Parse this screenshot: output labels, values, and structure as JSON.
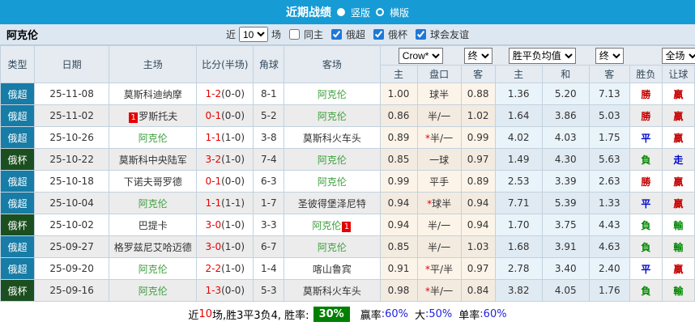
{
  "topbar": {
    "title": "近期战绩",
    "orientation_options": [
      {
        "label": "竖版",
        "selected": true
      },
      {
        "label": "横版",
        "selected": false
      }
    ]
  },
  "filterbar": {
    "team": "阿克伦",
    "near_label": "近",
    "match_count": "10",
    "games_label": "场",
    "filters": [
      {
        "label": "同主",
        "checked": false
      },
      {
        "label": "俄超",
        "checked": true
      },
      {
        "label": "俄杯",
        "checked": true
      },
      {
        "label": "球会友谊",
        "checked": true
      }
    ]
  },
  "table": {
    "dropdowns": {
      "bookmaker": "Crow*",
      "bookmaker_stage": "终",
      "average": "胜平负均值",
      "average_stage": "终",
      "scope": "全场"
    },
    "headers": {
      "type": "类型",
      "date": "日期",
      "home": "主场",
      "score": "比分(半场)",
      "corner": "角球",
      "away": "客场",
      "odds_home": "主",
      "odds_line": "盘口",
      "odds_away": "客",
      "avg_home": "主",
      "avg_draw": "和",
      "avg_away": "客",
      "result": "胜负",
      "handicap_result": "让球"
    },
    "rows": [
      {
        "league": "俄超",
        "league_type": "premier",
        "date": "25-11-08",
        "home": {
          "name": "莫斯科迪纳摩",
          "is_team": false
        },
        "score": "1-2",
        "half": "(0-0)",
        "corner": "8-1",
        "away": {
          "name": "阿克伦",
          "is_team": true
        },
        "odds": {
          "home": "1.00",
          "line": "球半",
          "line_star": false,
          "away": "0.88"
        },
        "avg": {
          "home": "1.36",
          "draw": "5.20",
          "away": "7.13"
        },
        "result": {
          "text": "勝",
          "color": "red"
        },
        "handicap": {
          "text": "贏",
          "color": "red"
        }
      },
      {
        "league": "俄超",
        "league_type": "premier",
        "date": "25-11-02",
        "home": {
          "name": "罗斯托夫",
          "is_team": false,
          "card_before": "1"
        },
        "score": "0-1",
        "half": "(0-0)",
        "corner": "5-2",
        "away": {
          "name": "阿克伦",
          "is_team": true
        },
        "odds": {
          "home": "0.86",
          "line": "半/一",
          "line_star": false,
          "away": "1.02"
        },
        "avg": {
          "home": "1.64",
          "draw": "3.86",
          "away": "5.03"
        },
        "result": {
          "text": "勝",
          "color": "red"
        },
        "handicap": {
          "text": "贏",
          "color": "red"
        }
      },
      {
        "league": "俄超",
        "league_type": "premier",
        "date": "25-10-26",
        "home": {
          "name": "阿克伦",
          "is_team": true
        },
        "score": "1-1",
        "half": "(1-0)",
        "corner": "3-8",
        "away": {
          "name": "莫斯科火车头",
          "is_team": false
        },
        "odds": {
          "home": "0.89",
          "line": "半/一",
          "line_star": true,
          "away": "0.99"
        },
        "avg": {
          "home": "4.02",
          "draw": "4.03",
          "away": "1.75"
        },
        "result": {
          "text": "平",
          "color": "blue"
        },
        "handicap": {
          "text": "贏",
          "color": "red"
        }
      },
      {
        "league": "俄杯",
        "league_type": "cup",
        "date": "25-10-22",
        "home": {
          "name": "莫斯科中央陆军",
          "is_team": false
        },
        "score": "3-2",
        "half": "(1-0)",
        "corner": "7-4",
        "away": {
          "name": "阿克伦",
          "is_team": true
        },
        "odds": {
          "home": "0.85",
          "line": "一球",
          "line_star": false,
          "away": "0.97"
        },
        "avg": {
          "home": "1.49",
          "draw": "4.30",
          "away": "5.63"
        },
        "result": {
          "text": "負",
          "color": "green"
        },
        "handicap": {
          "text": "走",
          "color": "blue"
        }
      },
      {
        "league": "俄超",
        "league_type": "premier",
        "date": "25-10-18",
        "home": {
          "name": "下诺夫哥罗德",
          "is_team": false
        },
        "score": "0-1",
        "half": "(0-0)",
        "corner": "6-3",
        "away": {
          "name": "阿克伦",
          "is_team": true
        },
        "odds": {
          "home": "0.99",
          "line": "平手",
          "line_star": false,
          "away": "0.89"
        },
        "avg": {
          "home": "2.53",
          "draw": "3.39",
          "away": "2.63"
        },
        "result": {
          "text": "勝",
          "color": "red"
        },
        "handicap": {
          "text": "贏",
          "color": "red"
        }
      },
      {
        "league": "俄超",
        "league_type": "premier",
        "date": "25-10-04",
        "home": {
          "name": "阿克伦",
          "is_team": true
        },
        "score": "1-1",
        "half": "(1-1)",
        "corner": "1-7",
        "away": {
          "name": "圣彼得堡泽尼特",
          "is_team": false
        },
        "odds": {
          "home": "0.94",
          "line": "球半",
          "line_star": true,
          "away": "0.94"
        },
        "avg": {
          "home": "7.71",
          "draw": "5.39",
          "away": "1.33"
        },
        "result": {
          "text": "平",
          "color": "blue"
        },
        "handicap": {
          "text": "贏",
          "color": "red"
        }
      },
      {
        "league": "俄杯",
        "league_type": "cup",
        "date": "25-10-02",
        "home": {
          "name": "巴提卡",
          "is_team": false
        },
        "score": "3-0",
        "half": "(1-0)",
        "corner": "3-3",
        "away": {
          "name": "阿克伦",
          "is_team": true,
          "card_after": "1"
        },
        "odds": {
          "home": "0.94",
          "line": "半/一",
          "line_star": false,
          "away": "0.94"
        },
        "avg": {
          "home": "1.70",
          "draw": "3.75",
          "away": "4.43"
        },
        "result": {
          "text": "負",
          "color": "green"
        },
        "handicap": {
          "text": "輸",
          "color": "green"
        }
      },
      {
        "league": "俄超",
        "league_type": "premier",
        "date": "25-09-27",
        "home": {
          "name": "格罗兹尼艾哈迈德",
          "is_team": false
        },
        "score": "3-0",
        "half": "(1-0)",
        "corner": "6-7",
        "away": {
          "name": "阿克伦",
          "is_team": true
        },
        "odds": {
          "home": "0.85",
          "line": "半/一",
          "line_star": false,
          "away": "1.03"
        },
        "avg": {
          "home": "1.68",
          "draw": "3.91",
          "away": "4.63"
        },
        "result": {
          "text": "負",
          "color": "green"
        },
        "handicap": {
          "text": "輸",
          "color": "green"
        }
      },
      {
        "league": "俄超",
        "league_type": "premier",
        "date": "25-09-20",
        "home": {
          "name": "阿克伦",
          "is_team": true
        },
        "score": "2-2",
        "half": "(1-0)",
        "corner": "1-4",
        "away": {
          "name": "喀山鲁宾",
          "is_team": false
        },
        "odds": {
          "home": "0.91",
          "line": "平/半",
          "line_star": true,
          "away": "0.97"
        },
        "avg": {
          "home": "2.78",
          "draw": "3.40",
          "away": "2.40"
        },
        "result": {
          "text": "平",
          "color": "blue"
        },
        "handicap": {
          "text": "贏",
          "color": "red"
        }
      },
      {
        "league": "俄杯",
        "league_type": "cup",
        "date": "25-09-16",
        "home": {
          "name": "阿克伦",
          "is_team": true
        },
        "score": "1-3",
        "half": "(0-0)",
        "corner": "5-3",
        "away": {
          "name": "莫斯科火车头",
          "is_team": false
        },
        "odds": {
          "home": "0.98",
          "line": "半/一",
          "line_star": true,
          "away": "0.84"
        },
        "avg": {
          "home": "3.82",
          "draw": "4.05",
          "away": "1.76"
        },
        "result": {
          "text": "負",
          "color": "green"
        },
        "handicap": {
          "text": "輸",
          "color": "green"
        }
      }
    ]
  },
  "summary": {
    "near": "近",
    "count": "10",
    "detail": "场,胜3平3负4, 胜率:",
    "win_rate": "30%",
    "rates": [
      {
        "label": "贏率",
        "value": ":60%"
      },
      {
        "label": "大",
        "value": ":50%"
      },
      {
        "label": "单率",
        "value": ":60%"
      }
    ]
  },
  "colors": {
    "topbar_bg": "#169bd5",
    "league_premier_bg": "#177ca6",
    "league_cup_bg": "#1c4f1f",
    "team_highlight_green": "#3c9e3c",
    "score_red": "#e60000",
    "win_red": "#c80000",
    "draw_blue": "#0008cc",
    "lose_green": "#008800",
    "win_rate_badge_bg": "#008000",
    "rate_value_blue": "#2222dd"
  }
}
